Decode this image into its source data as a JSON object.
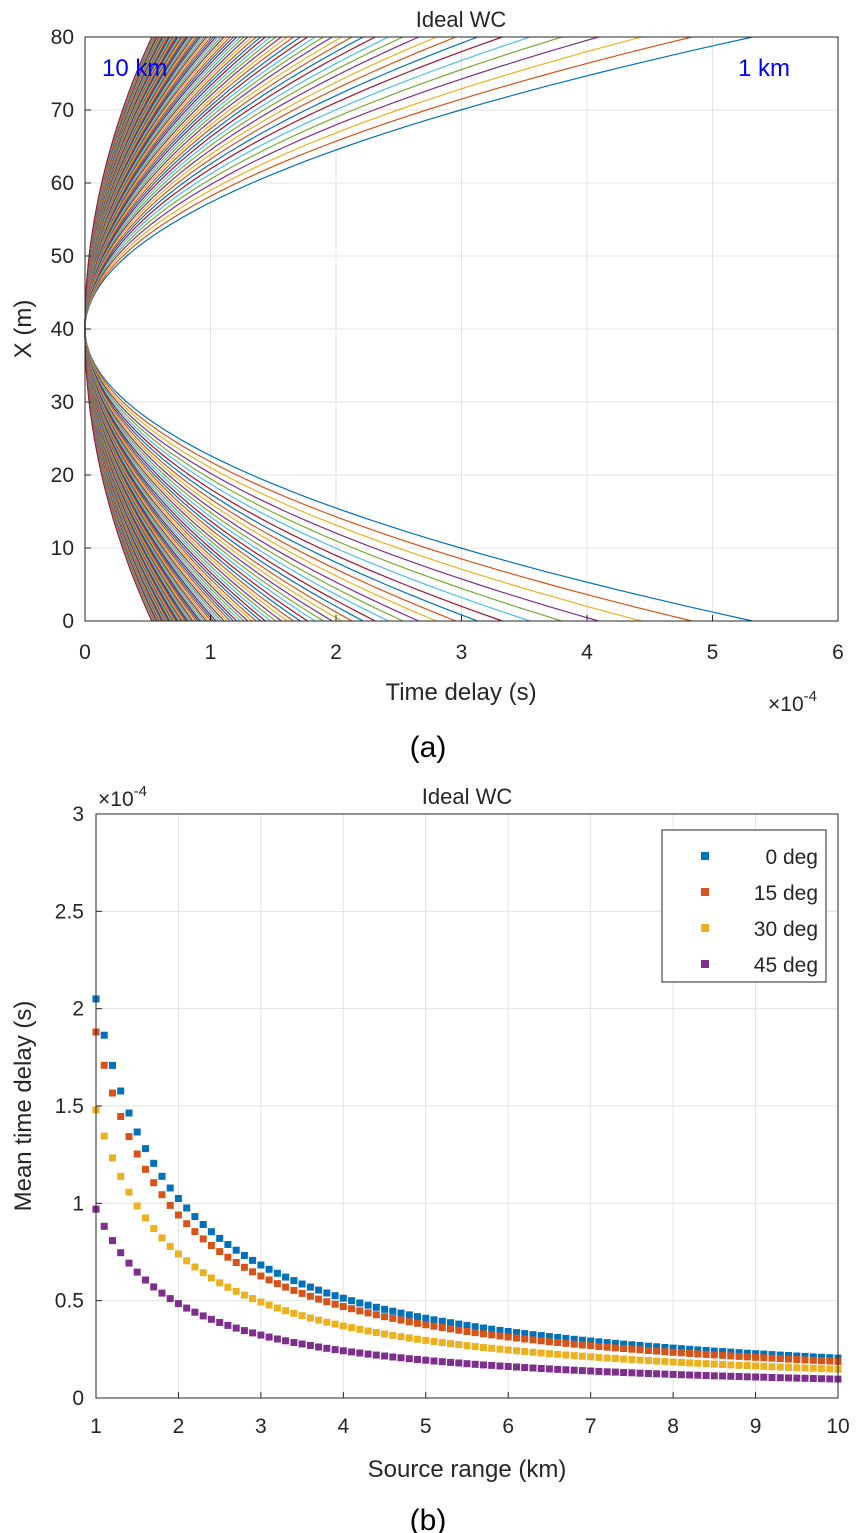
{
  "chart_data": [
    {
      "type": "line",
      "title": "Ideal WC",
      "xlabel": "Time delay (s)",
      "ylabel": "X (m)",
      "x_multiplier_label": "×10",
      "x_multiplier_exponent": "-4",
      "xlim": [
        0,
        6
      ],
      "ylim": [
        0,
        80
      ],
      "xticks": [
        "0",
        "1",
        "2",
        "3",
        "4",
        "5",
        "6"
      ],
      "yticks": [
        "0",
        "10",
        "20",
        "30",
        "40",
        "50",
        "60",
        "70",
        "80"
      ],
      "grid": true,
      "caption": "(a)",
      "annotations": [
        {
          "text": "10 km",
          "color": "#0000ff"
        },
        {
          "text": "1 km",
          "color": "#0000ff"
        }
      ],
      "series_description": "Time-delay curves tau(X) across an 80 m array (center 40 m) for source ranges 1 km to 10 km; max delay at array ends, x10^-4 s",
      "array_center_m": 40,
      "range_start_km": 1,
      "range_end_km": 10,
      "range_step_km": 0.1,
      "max_delay_at_1km": 5.32,
      "max_delay_at_10km": 0.53,
      "series_colors": [
        "#0072bd",
        "#d95319",
        "#edb120",
        "#7e2f8e",
        "#77ac30",
        "#4dbeee",
        "#a2142f"
      ]
    },
    {
      "type": "scatter",
      "title": "Ideal WC",
      "xlabel": "Source range (km)",
      "ylabel": "Mean time delay (s)",
      "y_multiplier_label": "×10",
      "y_multiplier_exponent": "-4",
      "xlim": [
        1,
        10
      ],
      "ylim": [
        0,
        3
      ],
      "xticks": [
        "1",
        "2",
        "3",
        "4",
        "5",
        "6",
        "7",
        "8",
        "9",
        "10"
      ],
      "yticks": [
        "0",
        "0.5",
        "1",
        "1.5",
        "2",
        "2.5",
        "3"
      ],
      "grid": true,
      "caption": "(b)",
      "legend_position": "top-right",
      "x_start_km": 1,
      "x_end_km": 10,
      "x_step_km": 0.1,
      "series": [
        {
          "name": "0 deg",
          "color": "#0072bd",
          "value_at_1km": 2.05
        },
        {
          "name": "15 deg",
          "color": "#d95319",
          "value_at_1km": 1.88
        },
        {
          "name": "30 deg",
          "color": "#edb120",
          "value_at_1km": 1.48
        },
        {
          "name": "45 deg",
          "color": "#7e2f8e",
          "value_at_1km": 0.97
        }
      ]
    }
  ]
}
